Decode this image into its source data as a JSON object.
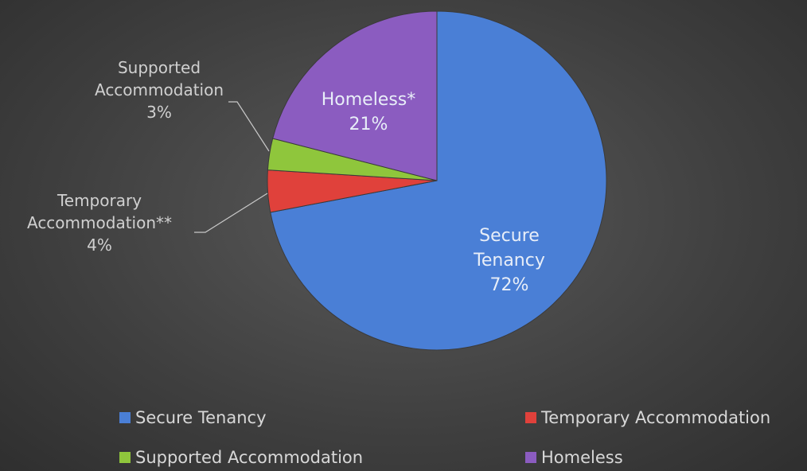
{
  "chart_data": {
    "type": "pie",
    "categories": [
      "Secure Tenancy",
      "Temporary Accommodation",
      "Supported Accommodation",
      "Homeless"
    ],
    "label_names": [
      "Secure Tenancy",
      "Temporary Accommodation**",
      "Supported Accommodation",
      "Homeless*"
    ],
    "values": [
      72,
      4,
      3,
      21
    ],
    "value_labels": [
      "72%",
      "4%",
      "3%",
      "21%"
    ],
    "colors": [
      "#4a7fd6",
      "#e0413b",
      "#8fc63c",
      "#8b5cc0"
    ],
    "legend": "bottom"
  }
}
